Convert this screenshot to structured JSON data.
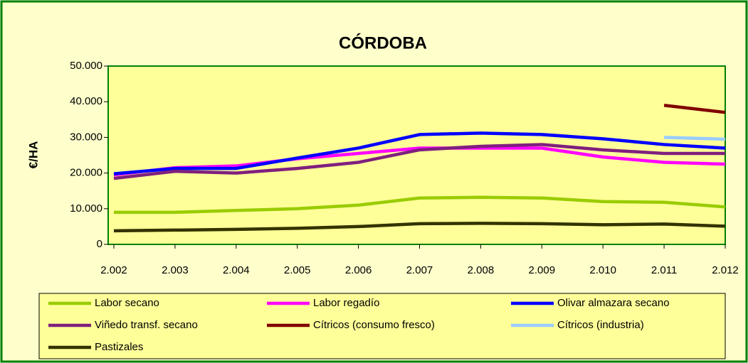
{
  "chart_data": {
    "type": "line",
    "title": "CÓRDOBA",
    "y_label": "€/HA",
    "categories": [
      "2.002",
      "2.003",
      "2.004",
      "2.005",
      "2.006",
      "2.007",
      "2.008",
      "2.009",
      "2.010",
      "2.011",
      "2.012"
    ],
    "series": [
      {
        "name": "Labor secano",
        "color": "#99cc00",
        "values": [
          9000,
          9000,
          9500,
          10000,
          11000,
          13000,
          13200,
          13000,
          12000,
          11800,
          10500
        ]
      },
      {
        "name": "Labor regadío",
        "color": "#ff00ff",
        "values": [
          19500,
          21500,
          22000,
          24000,
          25500,
          27000,
          27000,
          27000,
          24500,
          23000,
          22500
        ]
      },
      {
        "name": "Olivar almazara secano",
        "color": "#0000ff",
        "values": [
          19800,
          21300,
          21300,
          24200,
          27000,
          30800,
          31200,
          30800,
          29600,
          28000,
          27000
        ]
      },
      {
        "name": "Viñedo transf. secano",
        "color": "#7f1f7f",
        "values": [
          18500,
          20500,
          20000,
          21300,
          23000,
          26500,
          27500,
          28000,
          26500,
          25500,
          25500
        ]
      },
      {
        "name": "Cítricos (consumo fresco)",
        "color": "#800000",
        "values": [
          null,
          null,
          null,
          null,
          null,
          null,
          null,
          null,
          null,
          39000,
          37000
        ]
      },
      {
        "name": "Cítricos (industria)",
        "color": "#99ccff",
        "values": [
          null,
          null,
          null,
          null,
          null,
          null,
          null,
          null,
          null,
          30000,
          29500
        ]
      },
      {
        "name": "Pastizales",
        "color": "#333300",
        "values": [
          3800,
          4000,
          4200,
          4500,
          5000,
          5800,
          5900,
          5800,
          5500,
          5700,
          5100
        ]
      }
    ],
    "ylim": [
      0,
      50000
    ],
    "yticks": [
      0,
      {
        "value": 10000,
        "label": "10.000"
      },
      {
        "value": 20000,
        "label": "20.000"
      },
      {
        "value": 30000,
        "label": "30.000"
      },
      {
        "value": 40000,
        "label": "40.000"
      },
      {
        "value": 50000,
        "label": "50.000"
      }
    ],
    "grid": false,
    "legend": "bottom"
  }
}
